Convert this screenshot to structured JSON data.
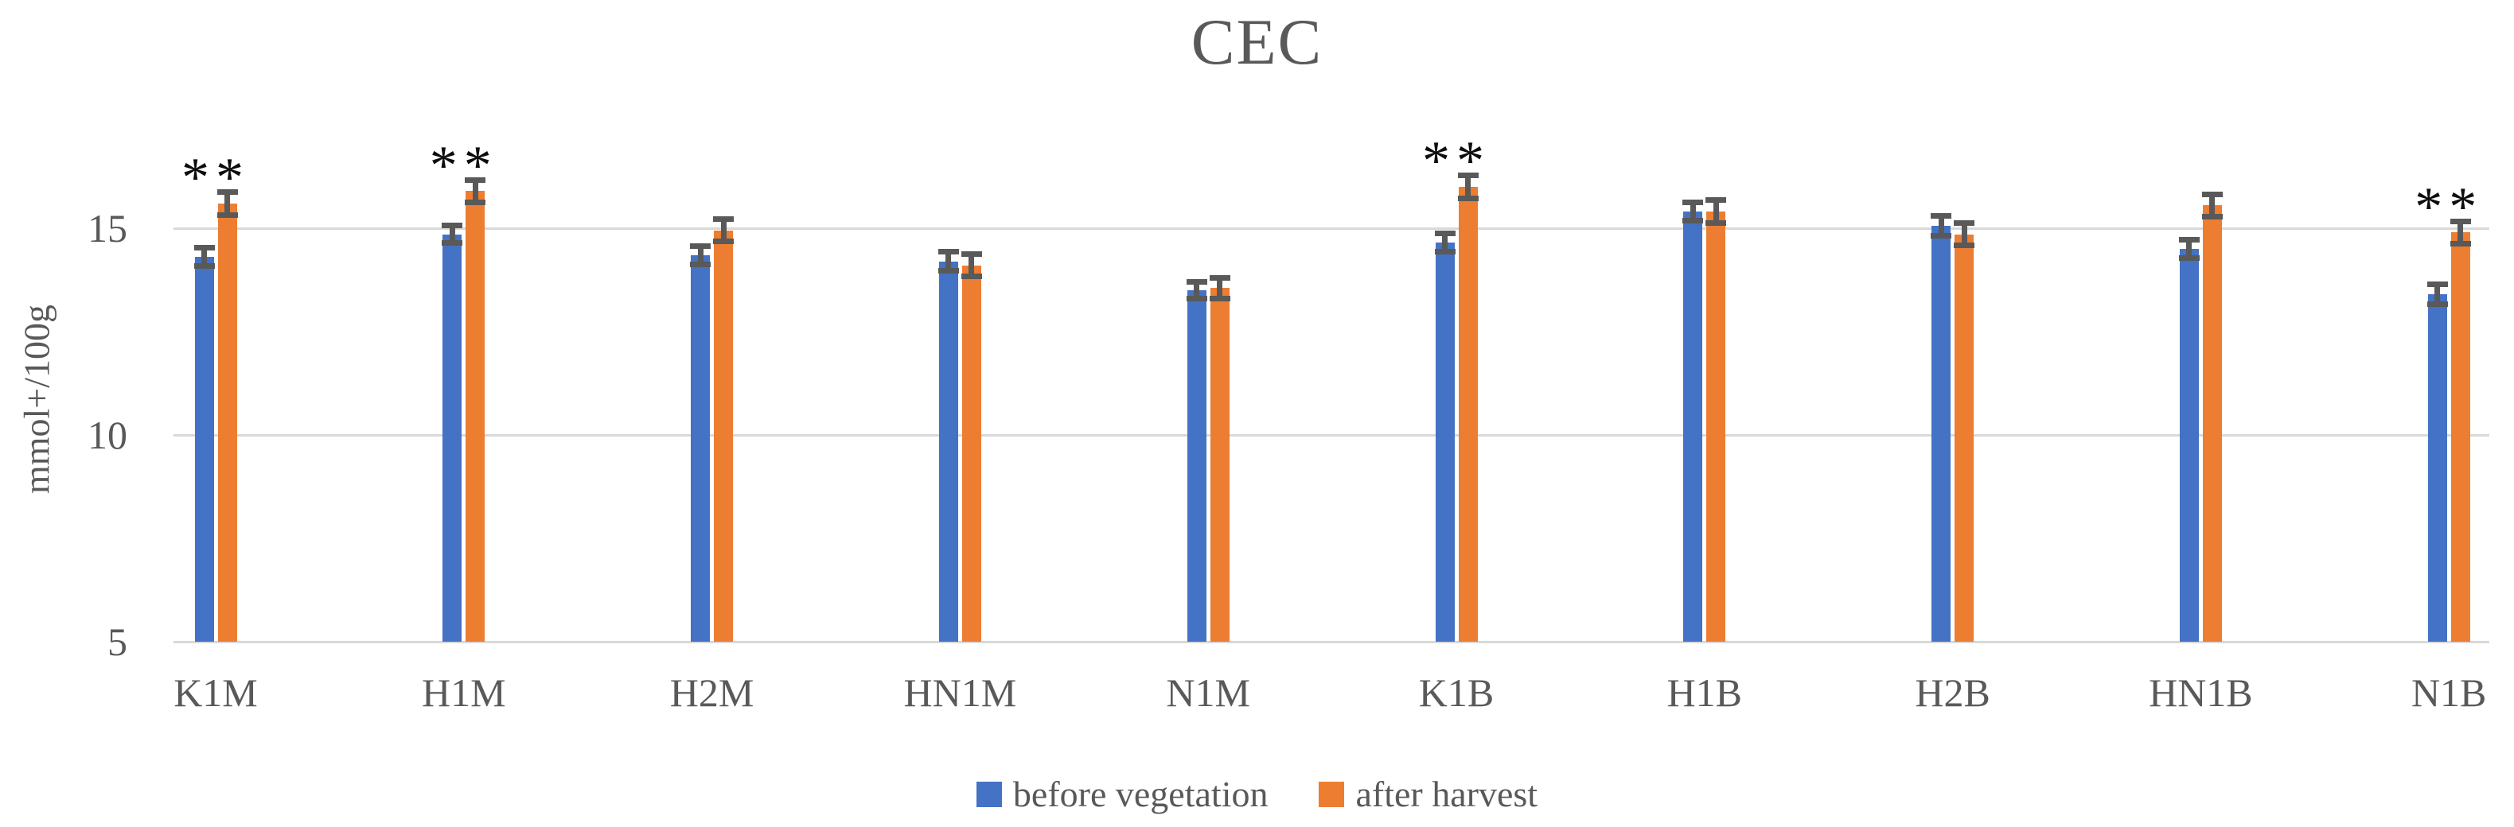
{
  "chart_data": {
    "type": "bar",
    "title": "CEC",
    "ylabel": "mmol+/100g",
    "categories": [
      "K1M",
      "H1M",
      "H2M",
      "HN1M",
      "N1M",
      "K1B",
      "H1B",
      "H2B",
      "HN1B",
      "N1B"
    ],
    "series": [
      {
        "name": "before vegetation",
        "color": "#4472C4",
        "values": [
          14.3,
          14.85,
          14.35,
          14.2,
          13.5,
          14.65,
          15.4,
          15.05,
          14.5,
          13.4
        ],
        "errors": [
          0.22,
          0.21,
          0.22,
          0.23,
          0.2,
          0.22,
          0.22,
          0.24,
          0.23,
          0.24
        ]
      },
      {
        "name": "after harvest",
        "color": "#ED7D31",
        "values": [
          15.6,
          15.9,
          14.95,
          14.1,
          13.55,
          16.0,
          15.4,
          14.85,
          15.55,
          14.9
        ],
        "errors": [
          0.28,
          0.27,
          0.27,
          0.27,
          0.25,
          0.28,
          0.28,
          0.27,
          0.27,
          0.27
        ]
      }
    ],
    "significance": [
      "**",
      "**",
      "",
      "",
      "",
      "**",
      "",
      "",
      "",
      "**"
    ],
    "y_ticks": [
      5,
      10,
      15
    ],
    "ylim": [
      5,
      17
    ],
    "grid": true,
    "legend_position": "bottom",
    "colors": {
      "before_vegetation": "#4472C4",
      "after_harvest": "#ED7D31",
      "error_bar": "#595959",
      "gridline": "#D9D9D9",
      "axis_text": "#595959",
      "title_text": "#595959",
      "significance_marker": "#0D0D0D"
    }
  }
}
